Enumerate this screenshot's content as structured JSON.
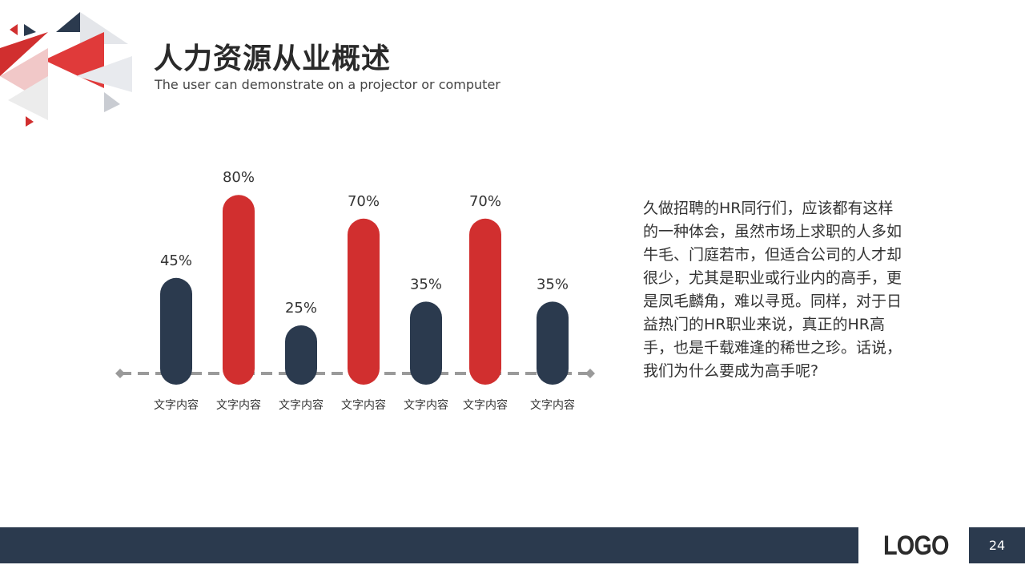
{
  "slide": {
    "title": "人力资源从业概述",
    "subtitle": "The user can demonstrate on a projector or computer",
    "body_text": "久做招聘的HR同行们，应该都有这样的一种体会，虽然市场上求职的人多如牛毛、门庭若市，但适合公司的人才却很少，尤其是职业或行业内的高手，更是凤毛麟角，难以寻觅。同样，对于日益热门的HR职业来说，真正的HR高手，也是千载难逢的稀世之珍。话说，我们为什么要成为高手呢?",
    "logo": "LOGO",
    "page_number": "24"
  },
  "colors": {
    "navy": "#2b3a4e",
    "red": "#d12f2f",
    "baseline": "#9a9a9a"
  },
  "chart_data": {
    "type": "bar",
    "categories": [
      "文字内容",
      "文字内容",
      "文字内容",
      "文字内容",
      "文字内容",
      "文字内容",
      "文字内容"
    ],
    "values": [
      45,
      80,
      25,
      70,
      35,
      70,
      35
    ],
    "value_labels": [
      "45%",
      "80%",
      "25%",
      "70%",
      "35%",
      "70%",
      "35%"
    ],
    "bar_colors": [
      "#2b3a4e",
      "#d12f2f",
      "#2b3a4e",
      "#d12f2f",
      "#2b3a4e",
      "#d12f2f",
      "#2b3a4e"
    ],
    "unit": "%",
    "ylim": [
      0,
      100
    ],
    "grid": false,
    "legend": "none"
  }
}
